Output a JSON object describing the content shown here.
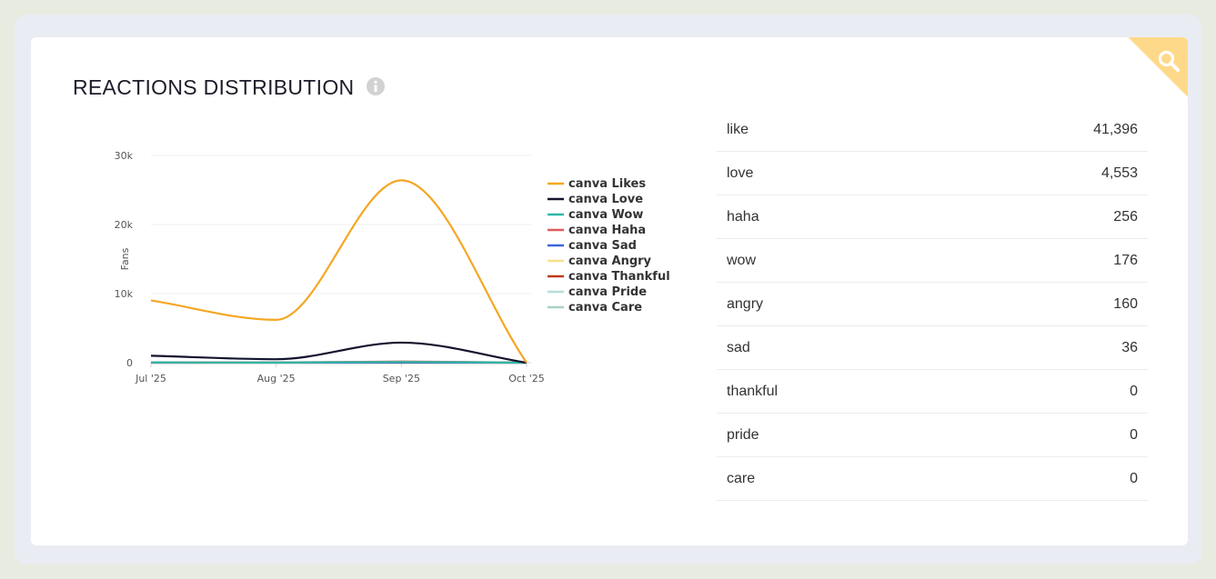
{
  "panel": {
    "title": "REACTIONS DISTRIBUTION",
    "icons": {
      "info": "info-icon",
      "search": "search-icon"
    }
  },
  "reactions_table": [
    {
      "label": "like",
      "value": "41,396"
    },
    {
      "label": "love",
      "value": "4,553"
    },
    {
      "label": "haha",
      "value": "256"
    },
    {
      "label": "wow",
      "value": "176"
    },
    {
      "label": "angry",
      "value": "160"
    },
    {
      "label": "sad",
      "value": "36"
    },
    {
      "label": "thankful",
      "value": "0"
    },
    {
      "label": "pride",
      "value": "0"
    },
    {
      "label": "care",
      "value": "0"
    }
  ],
  "chart_data": {
    "type": "line",
    "title": "",
    "xlabel": "",
    "ylabel": "Fans",
    "categories": [
      "Jul '25",
      "Aug '25",
      "Sep '25",
      "Oct '25"
    ],
    "ylim": [
      0,
      30000
    ],
    "yticks": [
      0,
      10000,
      20000,
      30000
    ],
    "ytick_labels": [
      "0",
      "10k",
      "20k",
      "30k"
    ],
    "grid": true,
    "legend_position": "right",
    "series": [
      {
        "name": "canva Likes",
        "color": "#f5a623",
        "values": [
          9000,
          6200,
          26400,
          0
        ]
      },
      {
        "name": "canva Love",
        "color": "#13132e",
        "values": [
          1000,
          500,
          2900,
          0
        ]
      },
      {
        "name": "canva Wow",
        "color": "#2eb8a6",
        "values": [
          30,
          20,
          110,
          0
        ]
      },
      {
        "name": "canva Haha",
        "color": "#e05c5c",
        "values": [
          40,
          30,
          170,
          0
        ]
      },
      {
        "name": "canva Sad",
        "color": "#3a66d8",
        "values": [
          5,
          5,
          25,
          0
        ]
      },
      {
        "name": "canva Angry",
        "color": "#f8e08e",
        "values": [
          20,
          20,
          110,
          0
        ]
      },
      {
        "name": "canva Thankful",
        "color": "#c0391b",
        "values": [
          0,
          0,
          0,
          0
        ]
      },
      {
        "name": "canva Pride",
        "color": "#b6dfd8",
        "values": [
          0,
          0,
          0,
          0
        ]
      },
      {
        "name": "canva Care",
        "color": "#a9d1c4",
        "values": [
          0,
          0,
          0,
          0
        ]
      }
    ]
  }
}
